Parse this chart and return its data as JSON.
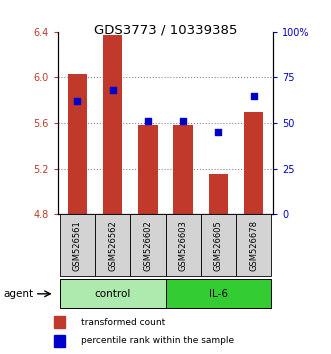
{
  "title": "GDS3773 / 10339385",
  "samples": [
    "GSM526561",
    "GSM526562",
    "GSM526602",
    "GSM526603",
    "GSM526605",
    "GSM526678"
  ],
  "groups": [
    "control",
    "control",
    "control",
    "IL-6",
    "IL-6",
    "IL-6"
  ],
  "bar_values": [
    6.03,
    6.37,
    5.585,
    5.585,
    5.15,
    5.7
  ],
  "dot_values": [
    62,
    68,
    51,
    51,
    45,
    65
  ],
  "bar_bottom": 4.8,
  "ylim_left": [
    4.8,
    6.4
  ],
  "ylim_right": [
    0,
    100
  ],
  "yticks_left": [
    4.8,
    5.2,
    5.6,
    6.0,
    6.4
  ],
  "yticks_right": [
    0,
    25,
    50,
    75,
    100
  ],
  "bar_color": "#c0392b",
  "dot_color": "#0000cc",
  "control_color": "#aeeaae",
  "il6_color": "#33cc33",
  "grid_color": "#888888",
  "title_fontsize": 9.5,
  "tick_fontsize": 7,
  "label_fontsize": 7,
  "legend_fontsize": 6.5
}
